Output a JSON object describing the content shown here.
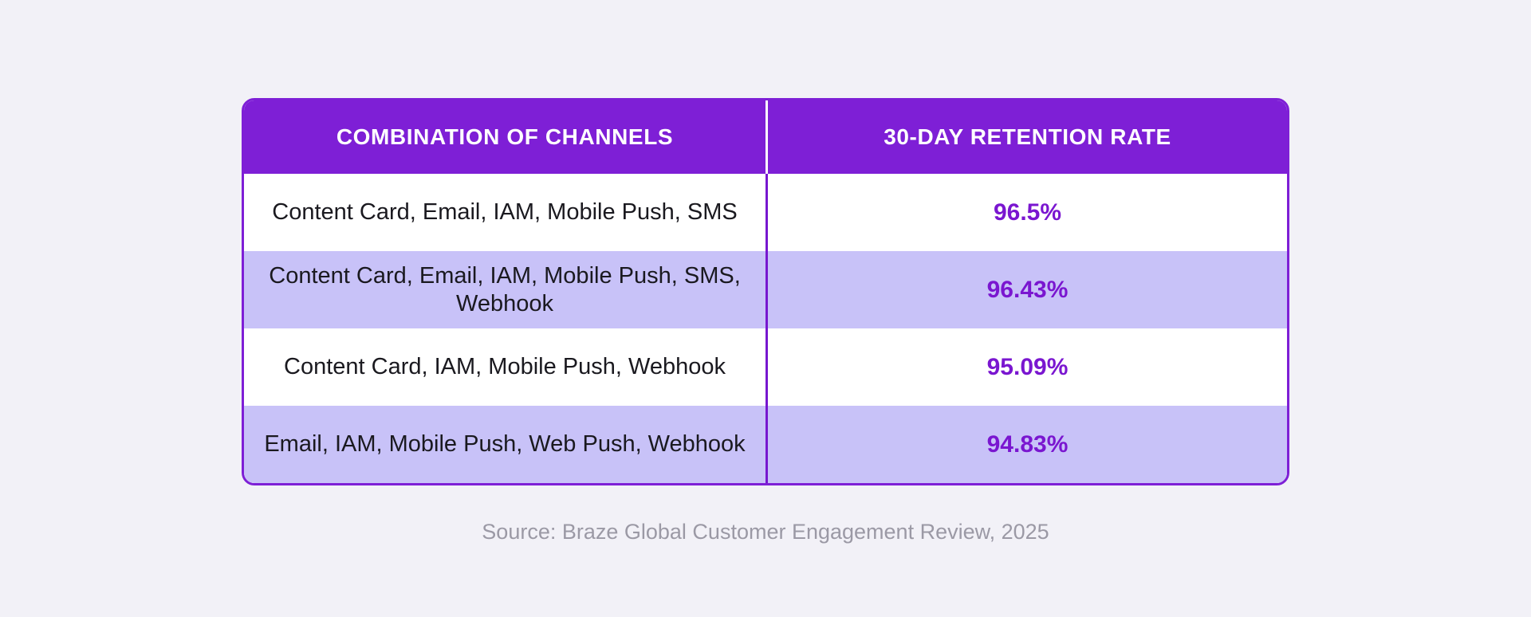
{
  "page": {
    "background_color": "#F2F1F7",
    "accent_color": "#7E1FD6",
    "alt_row_color": "#C8C2F8",
    "value_text_color": "#7A16D0"
  },
  "table": {
    "headers": {
      "channels": "COMBINATION OF CHANNELS",
      "retention": "30-DAY RETENTION RATE"
    },
    "rows": [
      {
        "channels": "Content Card, Email, IAM, Mobile Push, SMS",
        "retention": "96.5%"
      },
      {
        "channels": "Content Card, Email, IAM, Mobile Push, SMS, Webhook",
        "retention": "96.43%"
      },
      {
        "channels": "Content Card, IAM, Mobile Push, Webhook",
        "retention": "95.09%"
      },
      {
        "channels": "Email, IAM, Mobile Push, Web Push, Webhook",
        "retention": "94.83%"
      }
    ]
  },
  "source": {
    "text": "Source: Braze Global Customer Engagement Review, 2025"
  },
  "chart_data": {
    "type": "table",
    "title": "",
    "columns": [
      "Combination of Channels",
      "30-Day Retention Rate"
    ],
    "rows": [
      [
        "Content Card, Email, IAM, Mobile Push, SMS",
        "96.5%"
      ],
      [
        "Content Card, Email, IAM, Mobile Push, SMS, Webhook",
        "96.43%"
      ],
      [
        "Content Card, IAM, Mobile Push, Webhook",
        "95.09%"
      ],
      [
        "Email, IAM, Mobile Push, Web Push, Webhook",
        "94.83%"
      ]
    ],
    "values": [
      96.5,
      96.43,
      95.09,
      94.83
    ],
    "value_unit": "%",
    "source": "Source: Braze Global Customer Engagement Review, 2025"
  }
}
